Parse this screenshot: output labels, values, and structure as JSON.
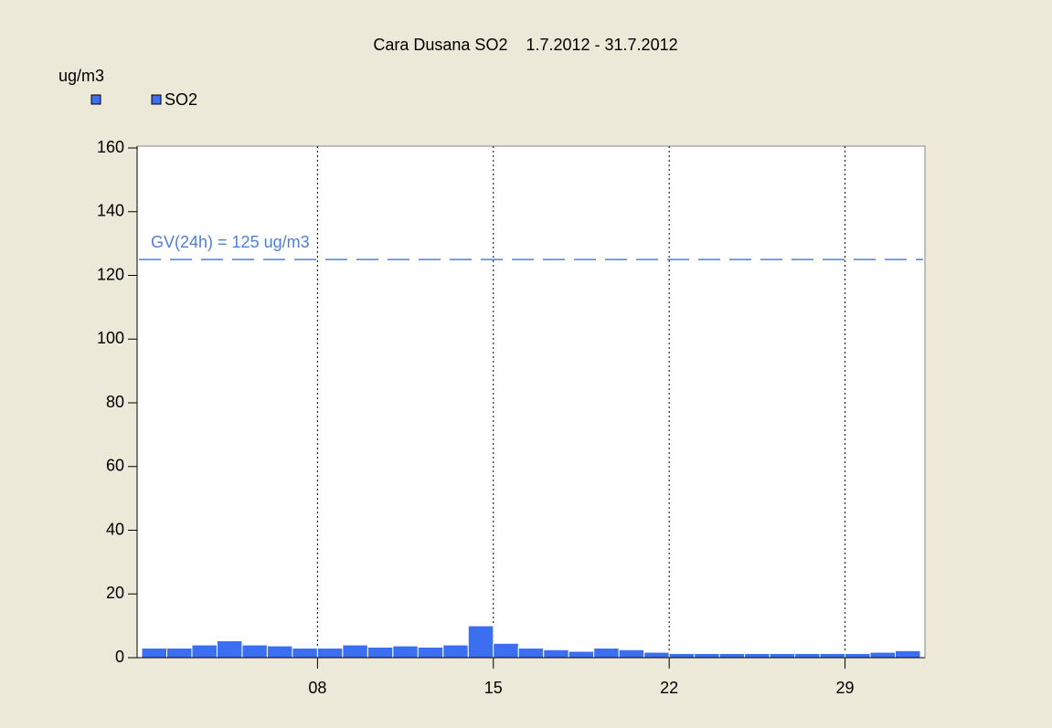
{
  "chart_data": {
    "type": "bar",
    "title": "Cara Dusana SO2    1.7.2012 - 31.7.2012",
    "y_label": "ug/m3",
    "x": [
      1,
      2,
      3,
      4,
      5,
      6,
      7,
      8,
      9,
      10,
      11,
      12,
      13,
      14,
      15,
      16,
      17,
      18,
      19,
      20,
      21,
      22,
      23,
      24,
      25,
      26,
      27,
      28,
      29,
      30,
      31
    ],
    "series": [
      {
        "name": "SO2",
        "color": "#3b6ef0",
        "values": [
          3,
          3,
          4,
          5.3,
          4,
          3.7,
          3,
          3,
          4,
          3.3,
          3.7,
          3.3,
          4,
          10,
          4.5,
          3,
          2.5,
          2,
          3,
          2.5,
          1.7,
          1.3,
          1.3,
          1.3,
          1.3,
          1.3,
          1.3,
          1.3,
          1.3,
          1.7,
          2.2
        ]
      }
    ],
    "xlim": [
      1,
      32
    ],
    "xticks": [
      {
        "value": 8,
        "label": "08"
      },
      15,
      22,
      29
    ],
    "ylim": [
      0,
      160
    ],
    "yticks": [
      0,
      20,
      40,
      60,
      80,
      100,
      120,
      140,
      160
    ],
    "reference_lines": [
      {
        "value": 125,
        "label": "GV(24h) = 125 ug/m3",
        "color": "#4f7fd6"
      }
    ],
    "x_grid": true
  }
}
